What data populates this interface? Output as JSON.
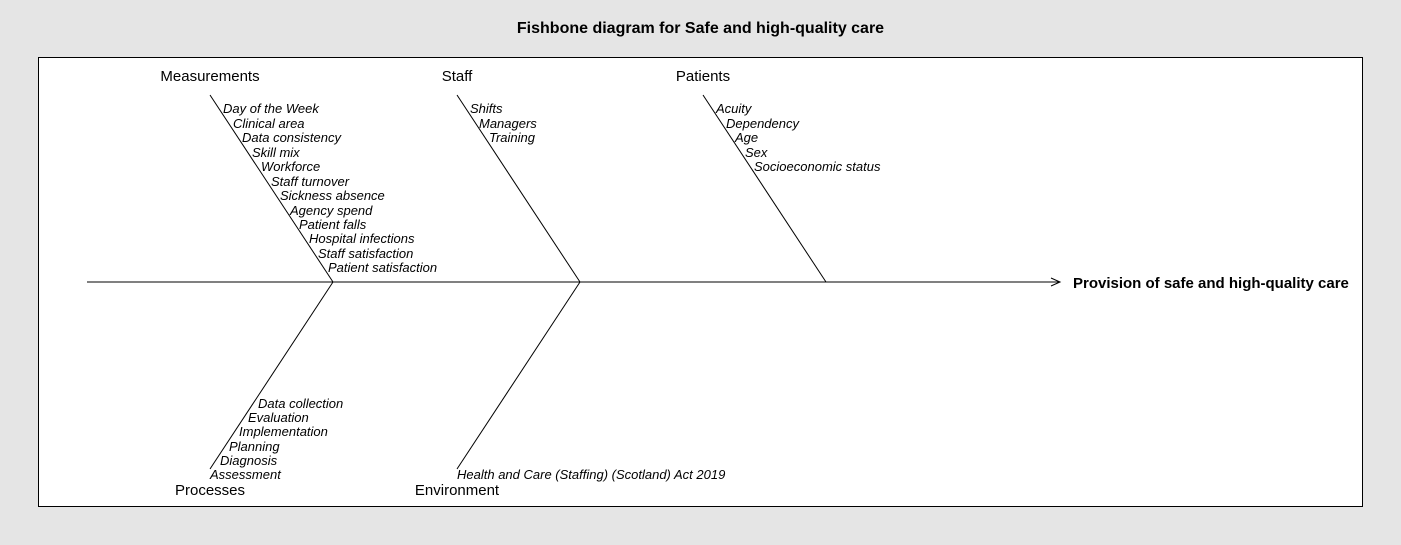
{
  "title": "Fishbone diagram for Safe and high-quality care",
  "effect": "Provision of safe and high-quality care",
  "categories": {
    "measurements": {
      "label": "Measurements",
      "causes": [
        "Day of the Week",
        "Clinical area",
        "Data consistency",
        "Skill mix",
        "Workforce",
        "Staff turnover",
        "Sickness absence",
        "Agency spend",
        "Patient falls",
        "Hospital infections",
        "Staff satisfaction",
        "Patient satisfaction"
      ]
    },
    "staff": {
      "label": "Staff",
      "causes": [
        "Shifts",
        "Managers",
        "Training"
      ]
    },
    "patients": {
      "label": "Patients",
      "causes": [
        "Acuity",
        "Dependency",
        "Age",
        "Sex",
        "Socioeconomic status"
      ]
    },
    "processes": {
      "label": "Processes",
      "causes": [
        "Data collection",
        "Evaluation",
        "Implementation",
        "Planning",
        "Diagnosis",
        "Assessment"
      ]
    },
    "environment": {
      "label": "Environment",
      "causes": [
        "Health and Care (Staffing) (Scotland) Act 2019"
      ]
    }
  }
}
